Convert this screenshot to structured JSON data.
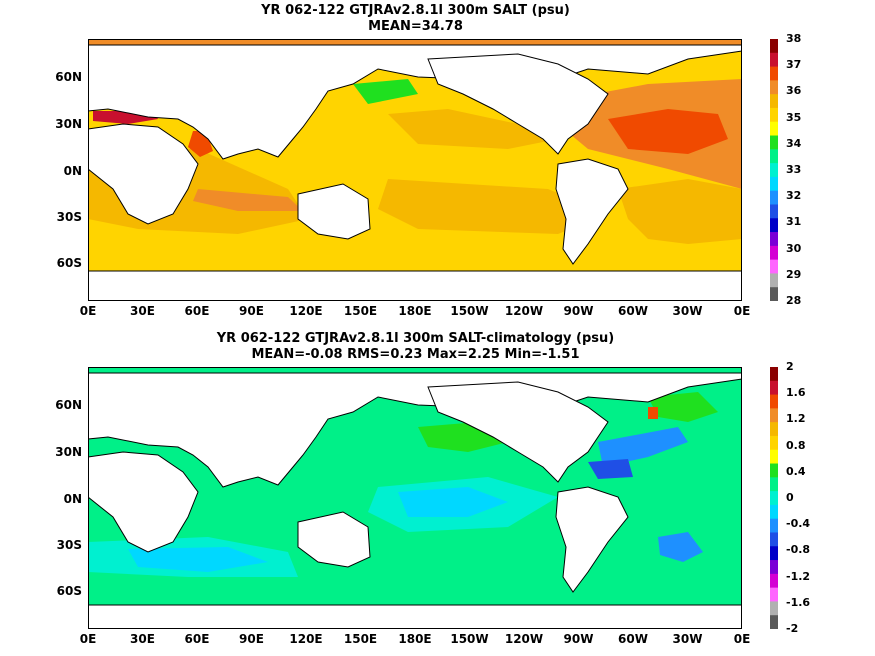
{
  "panels": [
    {
      "title_line1": "YR 062-122 GTJRAv2.8.1l 300m SALT (psu)",
      "title_line2": "MEAN=34.78",
      "colorbar_labels": [
        "38",
        "37",
        "36",
        "35",
        "34",
        "33",
        "32",
        "31",
        "30",
        "29",
        "28"
      ],
      "colorbar_colors": [
        "#8a0000",
        "#c8102e",
        "#f04a00",
        "#f08c28",
        "#f5b800",
        "#ffd400",
        "#ffff00",
        "#1fe01f",
        "#00f088",
        "#00f0d0",
        "#00d8ff",
        "#1e90ff",
        "#1f4fe6",
        "#0000c8",
        "#7a00d6",
        "#d400d4",
        "#ff66ff",
        "#b0b0b0",
        "#5a5a5a"
      ]
    },
    {
      "title_line1": "YR 062-122 GTJRAv2.8.1l 300m SALT-climatology (psu)",
      "title_line2": "MEAN=-0.08   RMS=0.23   Max=2.25   Min=-1.51",
      "colorbar_labels": [
        "2",
        "1.6",
        "1.2",
        "0.8",
        "0.4",
        "0",
        "-0.4",
        "-0.8",
        "-1.2",
        "-1.6",
        "-2"
      ],
      "colorbar_colors": [
        "#8a0000",
        "#c8102e",
        "#f04a00",
        "#f08c28",
        "#f5b800",
        "#ffd400",
        "#ffff00",
        "#1fe01f",
        "#00f088",
        "#00f0d0",
        "#00d8ff",
        "#1e90ff",
        "#1f4fe6",
        "#0000c8",
        "#7a00d6",
        "#d400d4",
        "#ff66ff",
        "#b0b0b0",
        "#5a5a5a"
      ]
    }
  ],
  "x_axis_labels": [
    "0E",
    "30E",
    "60E",
    "90E",
    "120E",
    "150E",
    "180E",
    "150W",
    "120W",
    "90W",
    "60W",
    "30W",
    "0E"
  ],
  "y_axis_labels": [
    "60N",
    "30N",
    "0N",
    "30S",
    "60S"
  ],
  "colors": {
    "land": "#ffffff",
    "coastline": "#000000",
    "salt_background": "#ffd400",
    "salt_warm": "#f5b800",
    "salt_high": "#f08c28",
    "salt_max": "#f04a00",
    "salt_extreme": "#c8102e",
    "salt_low": "#1fe01f",
    "anom_background": "#00f088",
    "anom_fresh": "#00f0d0",
    "anom_cyan": "#00d8ff",
    "anom_blue": "#1e90ff",
    "anom_darkblue": "#1f4fe6",
    "anom_positive": "#1fe01f",
    "anom_red": "#f04a00"
  }
}
